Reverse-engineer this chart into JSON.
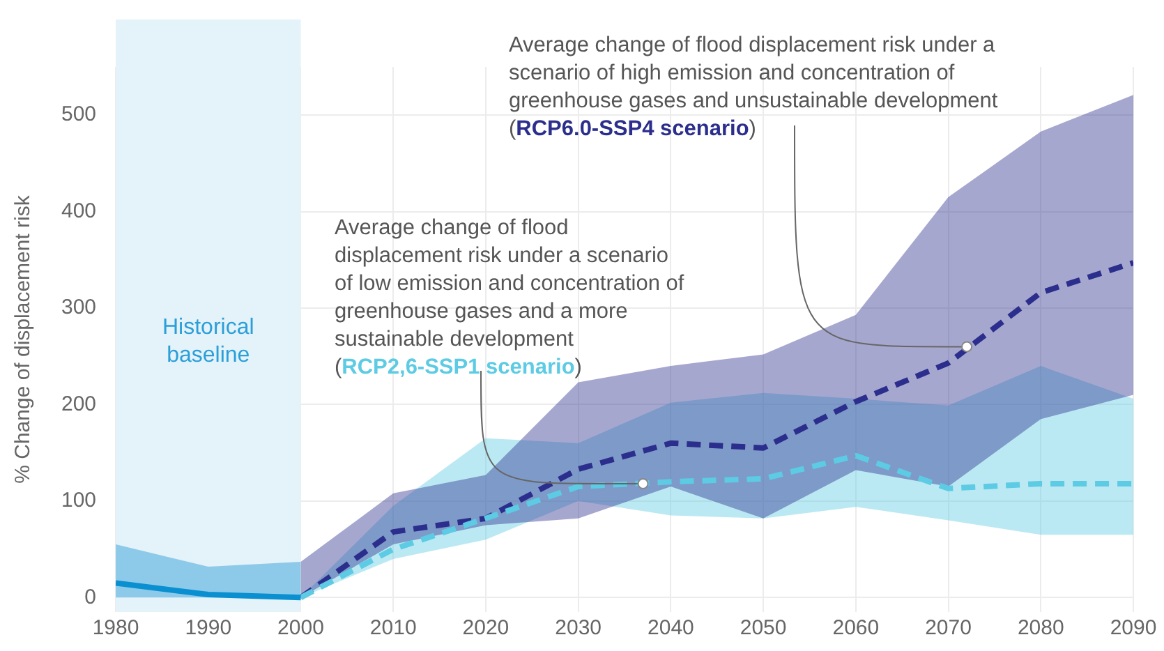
{
  "chart_data": {
    "type": "line",
    "ylabel": "% Change of displacement risk",
    "xlim": [
      1980,
      2090
    ],
    "xticks": [
      1980,
      1990,
      2000,
      2010,
      2020,
      2030,
      2040,
      2050,
      2060,
      2070,
      2080,
      2090
    ],
    "ylim": [
      -15,
      550
    ],
    "yticks": [
      0,
      100,
      200,
      300,
      400,
      500
    ],
    "grid": true,
    "legend": false,
    "marker": "none",
    "series": [
      {
        "color": "#0a8fd0",
        "line_style": "solid",
        "x": [
          1980,
          1990,
          2000
        ],
        "values": [
          15,
          3,
          0
        ],
        "lower": [
          0,
          0,
          0
        ],
        "upper": [
          55,
          32,
          37
        ]
      },
      {
        "color": "#5ccbe3",
        "line_style": "dashed",
        "x": [
          2000,
          2010,
          2020,
          2030,
          2040,
          2050,
          2060,
          2070,
          2080,
          2090
        ],
        "values": [
          0,
          50,
          82,
          115,
          120,
          123,
          147,
          113,
          118,
          118
        ],
        "lower": [
          0,
          40,
          60,
          100,
          85,
          82,
          94,
          80,
          65,
          65
        ],
        "upper": [
          0,
          95,
          165,
          160,
          202,
          212,
          206,
          199,
          240,
          206
        ]
      },
      {
        "color": "#2b2e8c",
        "line_style": "dashed",
        "x": [
          2000,
          2010,
          2020,
          2030,
          2040,
          2050,
          2060,
          2070,
          2080,
          2090
        ],
        "values": [
          0,
          68,
          82,
          133,
          160,
          155,
          203,
          243,
          316,
          347
        ],
        "lower": [
          0,
          55,
          75,
          82,
          115,
          82,
          132,
          115,
          185,
          210
        ],
        "upper": [
          37,
          108,
          127,
          223,
          240,
          252,
          293,
          415,
          483,
          521
        ]
      }
    ],
    "bands": [
      {
        "axis": "x",
        "from": 1980,
        "to": 2000,
        "label": "Historical\nbaseline",
        "color": "#e4f2fa"
      }
    ],
    "annotations": [
      {
        "text": "Average change of flood displacement risk under a\nscenario of high emission and concentration of\ngreenhouse gases and unsustainable development\n(RCP6.0-SSP4 scenario)",
        "x": 2072,
        "y": 260
      },
      {
        "text": "Average change of flood\ndisplacement risk under a scenario\nof low emission and concentration of\ngreenhouse gases and a more\nsustainable development\n(RCP2,6-SSP1 scenario)",
        "x": 2037,
        "y": 118
      }
    ]
  }
}
